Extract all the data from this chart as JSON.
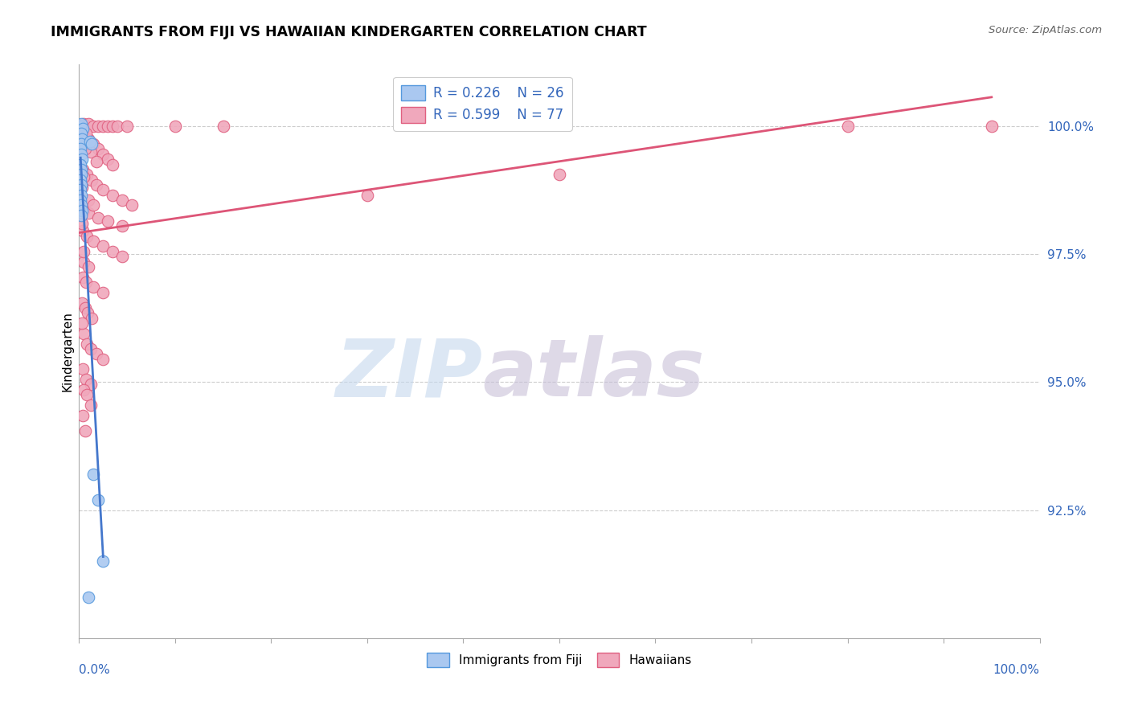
{
  "title": "IMMIGRANTS FROM FIJI VS HAWAIIAN KINDERGARTEN CORRELATION CHART",
  "source_text": "Source: ZipAtlas.com",
  "ylabel": "Kindergarten",
  "x_range": [
    0.0,
    100.0
  ],
  "y_range": [
    90.0,
    101.2
  ],
  "watermark_zip": "ZIP",
  "watermark_atlas": "atlas",
  "legend_blue_r": "R = 0.226",
  "legend_blue_n": "N = 26",
  "legend_pink_r": "R = 0.599",
  "legend_pink_n": "N = 77",
  "legend_blue_label": "Immigrants from Fiji",
  "legend_pink_label": "Hawaiians",
  "blue_color": "#aac8f0",
  "pink_color": "#f0a8bc",
  "blue_edge_color": "#5599dd",
  "pink_edge_color": "#e06080",
  "blue_line_color": "#4477cc",
  "pink_line_color": "#dd5577",
  "yticks": [
    92.5,
    95.0,
    97.5,
    100.0
  ],
  "grid_color": "#cccccc",
  "blue_scatter": [
    [
      0.15,
      100.0
    ],
    [
      0.25,
      100.05
    ],
    [
      0.35,
      99.95
    ],
    [
      0.2,
      99.85
    ],
    [
      0.3,
      99.75
    ],
    [
      0.25,
      99.65
    ],
    [
      0.15,
      99.55
    ],
    [
      0.2,
      99.45
    ],
    [
      0.3,
      99.35
    ],
    [
      0.15,
      99.25
    ],
    [
      0.2,
      99.15
    ],
    [
      0.25,
      99.05
    ],
    [
      0.15,
      98.95
    ],
    [
      0.2,
      98.85
    ],
    [
      0.15,
      98.75
    ],
    [
      0.2,
      98.65
    ],
    [
      0.15,
      98.55
    ],
    [
      0.2,
      98.45
    ],
    [
      0.3,
      98.35
    ],
    [
      0.2,
      98.25
    ],
    [
      1.1,
      99.7
    ],
    [
      1.3,
      99.65
    ],
    [
      1.5,
      93.2
    ],
    [
      2.0,
      92.7
    ],
    [
      2.5,
      91.5
    ],
    [
      1.0,
      90.8
    ]
  ],
  "pink_scatter": [
    [
      0.5,
      100.05
    ],
    [
      1.0,
      100.05
    ],
    [
      1.5,
      100.0
    ],
    [
      2.0,
      100.0
    ],
    [
      2.5,
      100.0
    ],
    [
      3.0,
      100.0
    ],
    [
      3.5,
      100.0
    ],
    [
      4.0,
      100.0
    ],
    [
      5.0,
      100.0
    ],
    [
      10.0,
      100.0
    ],
    [
      15.0,
      100.0
    ],
    [
      95.0,
      100.0
    ],
    [
      80.0,
      100.0
    ],
    [
      0.5,
      99.8
    ],
    [
      1.0,
      99.75
    ],
    [
      1.5,
      99.65
    ],
    [
      2.0,
      99.55
    ],
    [
      2.5,
      99.45
    ],
    [
      3.0,
      99.35
    ],
    [
      3.5,
      99.25
    ],
    [
      0.4,
      99.9
    ],
    [
      0.7,
      99.85
    ],
    [
      1.2,
      99.5
    ],
    [
      1.8,
      99.3
    ],
    [
      0.4,
      99.15
    ],
    [
      0.8,
      99.05
    ],
    [
      1.3,
      98.95
    ],
    [
      1.8,
      98.85
    ],
    [
      2.5,
      98.75
    ],
    [
      3.5,
      98.65
    ],
    [
      4.5,
      98.55
    ],
    [
      5.5,
      98.45
    ],
    [
      0.5,
      98.35
    ],
    [
      1.0,
      98.3
    ],
    [
      2.0,
      98.2
    ],
    [
      3.0,
      98.15
    ],
    [
      4.5,
      98.05
    ],
    [
      0.4,
      97.95
    ],
    [
      0.8,
      97.85
    ],
    [
      1.5,
      97.75
    ],
    [
      2.5,
      97.65
    ],
    [
      3.5,
      97.55
    ],
    [
      4.5,
      97.45
    ],
    [
      0.5,
      97.35
    ],
    [
      1.0,
      97.25
    ],
    [
      0.4,
      97.05
    ],
    [
      0.7,
      96.95
    ],
    [
      1.5,
      96.85
    ],
    [
      2.5,
      96.75
    ],
    [
      0.3,
      96.55
    ],
    [
      0.6,
      96.45
    ],
    [
      0.9,
      96.35
    ],
    [
      1.3,
      96.25
    ],
    [
      0.5,
      95.95
    ],
    [
      0.8,
      95.75
    ],
    [
      1.2,
      95.65
    ],
    [
      1.8,
      95.55
    ],
    [
      2.5,
      95.45
    ],
    [
      0.4,
      95.25
    ],
    [
      0.7,
      95.05
    ],
    [
      1.2,
      94.95
    ],
    [
      0.5,
      94.85
    ],
    [
      0.8,
      94.75
    ],
    [
      1.2,
      94.55
    ],
    [
      0.4,
      94.35
    ],
    [
      0.6,
      94.05
    ],
    [
      30.0,
      98.65
    ],
    [
      50.0,
      99.05
    ],
    [
      0.4,
      99.6
    ],
    [
      0.6,
      99.55
    ],
    [
      1.0,
      98.55
    ],
    [
      1.5,
      98.45
    ],
    [
      0.3,
      98.1
    ],
    [
      0.5,
      97.55
    ],
    [
      0.3,
      96.15
    ],
    [
      0.5,
      99.0
    ],
    [
      0.3,
      98.8
    ]
  ]
}
